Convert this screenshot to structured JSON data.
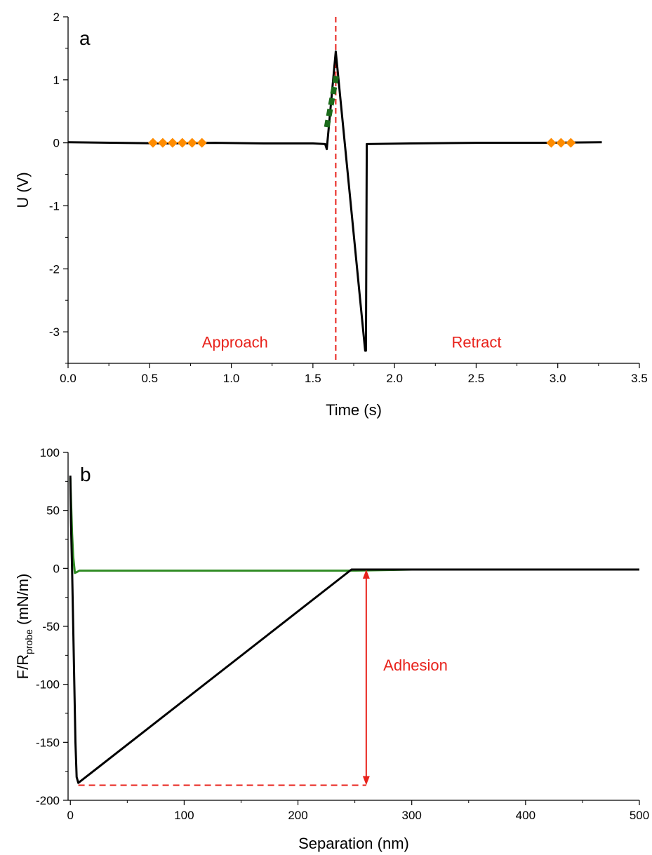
{
  "chart_data": [
    {
      "panel": "a",
      "type": "line",
      "xlabel": "Time (s)",
      "ylabel": "U (V)",
      "xlim": [
        0,
        3.5
      ],
      "ylim": [
        -3.5,
        2
      ],
      "xticks": [
        0.0,
        0.5,
        1.0,
        1.5,
        2.0,
        2.5,
        3.0,
        3.5
      ],
      "xtick_labels": [
        "0.0",
        "0.5",
        "1.0",
        "1.5",
        "2.0",
        "2.5",
        "3.0",
        "3.5"
      ],
      "yticks": [
        2,
        1,
        0,
        -1,
        -2,
        -3
      ],
      "ytick_labels": [
        "2",
        "1",
        "0",
        "-1",
        "-2",
        "-3"
      ],
      "grid": false,
      "series": [
        {
          "style": "line",
          "color": "#000000",
          "x": [
            0.0,
            0.3,
            0.6,
            0.9,
            1.2,
            1.5,
            1.575,
            1.585,
            1.64,
            1.82,
            1.825,
            1.83,
            2.1,
            2.5,
            2.9,
            3.27
          ],
          "y": [
            0.01,
            0.0,
            -0.01,
            0.0,
            -0.01,
            -0.01,
            -0.02,
            -0.1,
            1.45,
            -3.3,
            -3.3,
            -0.02,
            -0.01,
            0.0,
            0.0,
            0.01
          ]
        },
        {
          "style": "diamond-markers",
          "color": "#FF8C00",
          "x": [
            0.52,
            0.58,
            0.64,
            0.7,
            0.76,
            0.82,
            2.96,
            3.02,
            3.08
          ],
          "y": [
            0,
            0,
            0,
            0,
            0,
            0,
            0,
            0,
            0
          ]
        },
        {
          "style": "dashed-segment",
          "color": "#1B6B1B",
          "x": [
            1.585,
            1.645
          ],
          "y": [
            0.25,
            1.08
          ]
        }
      ],
      "annotations": [
        {
          "type": "vline",
          "x": 1.64,
          "color": "#E8221B"
        },
        {
          "type": "text",
          "text": "Approach",
          "x": 0.82,
          "y": -3.25,
          "color": "#E8221B"
        },
        {
          "type": "text",
          "text": "Retract",
          "x": 2.35,
          "y": -3.25,
          "color": "#E8221B"
        }
      ]
    },
    {
      "panel": "b",
      "type": "line",
      "xlabel": "Separation (nm)",
      "ylabel": "F/R",
      "ylabel_subscript": "probe",
      "ylabel_unit": " (mN/m)",
      "xlim": [
        -2,
        500
      ],
      "ylim": [
        -200,
        100
      ],
      "xticks": [
        0,
        100,
        200,
        300,
        400,
        500
      ],
      "xtick_labels": [
        "0",
        "100",
        "200",
        "300",
        "400",
        "500"
      ],
      "yticks": [
        100,
        50,
        0,
        -50,
        -100,
        -150,
        -200
      ],
      "ytick_labels": [
        "100",
        "50",
        "0",
        "-50",
        "-100",
        "-150",
        "-200"
      ],
      "grid": false,
      "series": [
        {
          "style": "line",
          "color": "#2E8B22",
          "x": [
            0,
            0.5,
            1.5,
            2.5,
            4,
            6,
            8,
            20,
            100,
            200,
            247,
            300,
            400,
            500
          ],
          "y": [
            78,
            60,
            30,
            10,
            -4,
            -3,
            -2,
            -2,
            -2,
            -2,
            -2,
            -1,
            -1,
            -1
          ]
        },
        {
          "style": "line",
          "color": "#000000",
          "x": [
            0,
            0.5,
            1.5,
            2.5,
            3.5,
            4.5,
            5.5,
            7,
            247,
            300,
            400,
            500
          ],
          "y": [
            80,
            40,
            0,
            -50,
            -100,
            -150,
            -180,
            -185,
            -1,
            -1,
            -1,
            -1
          ]
        }
      ],
      "annotations": [
        {
          "type": "hline-dashed",
          "x": [
            7,
            260
          ],
          "y": -187,
          "color": "#E8221B"
        },
        {
          "type": "double-arrow",
          "x": 260,
          "y": [
            -1,
            -187
          ],
          "color": "#E8221B"
        },
        {
          "type": "text",
          "text": "Adhesion",
          "x": 275,
          "y": -88,
          "color": "#E8221B"
        }
      ]
    }
  ]
}
